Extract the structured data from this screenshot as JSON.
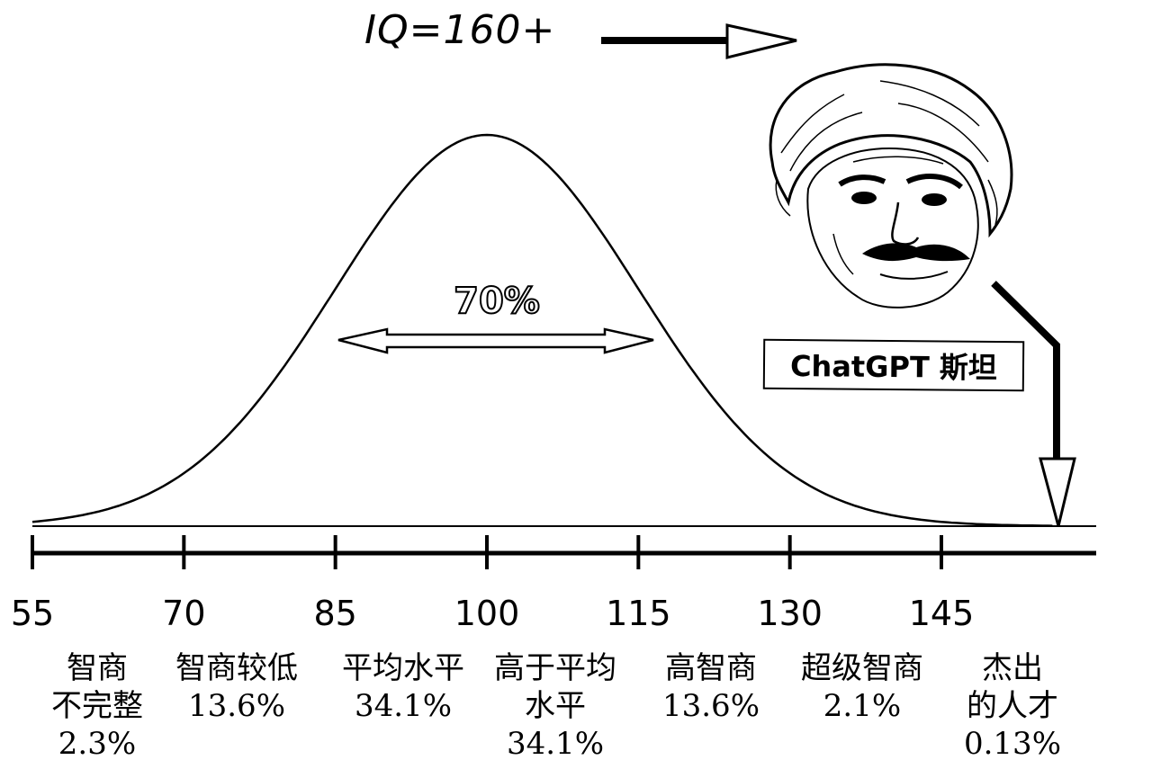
{
  "title": "IQ=160+",
  "peak_note": "70%",
  "badge": "ChatGPT 斯坦",
  "chart_data": {
    "type": "line",
    "title": "IQ=160+",
    "xlabel": "",
    "ylabel": "",
    "x_ticks": [
      "55",
      "70",
      "85",
      "100",
      "115",
      "130",
      "145"
    ],
    "xlim": [
      55,
      160
    ],
    "annotation": "70%",
    "pointer_iq": 155,
    "series": [
      {
        "distribution": "normal",
        "mean": 100,
        "sd": 15
      }
    ],
    "categories": [
      {
        "lines": [
          "智商",
          "不完整",
          "2.3%"
        ],
        "percent": 2.3
      },
      {
        "lines": [
          "智商较低",
          "13.6%"
        ],
        "percent": 13.6
      },
      {
        "lines": [
          "平均水平",
          "34.1%"
        ],
        "percent": 34.1
      },
      {
        "lines": [
          "高于平均",
          "水平",
          "34.1%"
        ],
        "percent": 34.1
      },
      {
        "lines": [
          "高智商",
          "13.6%"
        ],
        "percent": 13.6
      },
      {
        "lines": [
          "超级智商",
          "2.1%"
        ],
        "percent": 2.1
      },
      {
        "lines": [
          "杰出",
          "的人才",
          "0.13%"
        ],
        "percent": 0.13
      }
    ]
  }
}
